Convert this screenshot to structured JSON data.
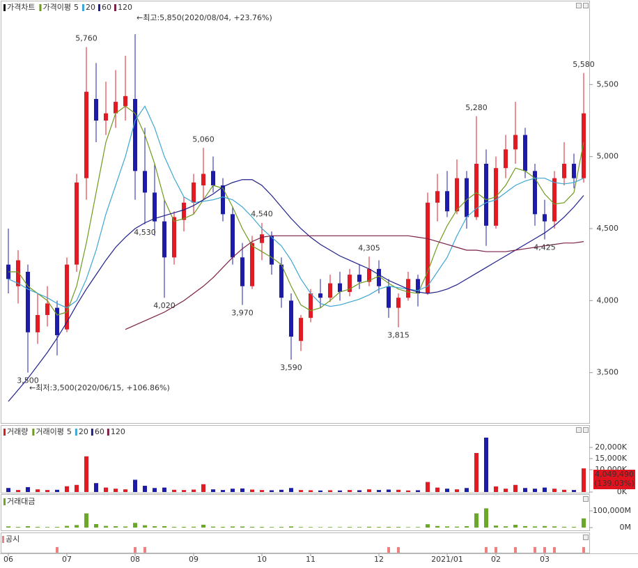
{
  "chart_data": [
    {
      "type": "candlestick",
      "title": "가격차트",
      "categories": [
        "06",
        null,
        null,
        null,
        null,
        null,
        "07",
        null,
        null,
        null,
        null,
        null,
        null,
        "08",
        null,
        null,
        null,
        null,
        null,
        "09",
        null,
        null,
        null,
        null,
        null,
        null,
        "10",
        null,
        null,
        null,
        null,
        "11",
        null,
        null,
        null,
        null,
        null,
        null,
        "12",
        null,
        null,
        null,
        null,
        null,
        null,
        "2021/01",
        null,
        null,
        null,
        null,
        "02",
        null,
        null,
        null,
        null,
        "03",
        null,
        null,
        null,
        null
      ],
      "open": [
        4250,
        4100,
        4200,
        3780,
        3900,
        3950,
        3800,
        4250,
        4850,
        5400,
        5250,
        5300,
        5350,
        5400,
        4900,
        4750,
        4550,
        4300,
        4560,
        4680,
        4800,
        4900,
        4800,
        4600,
        4300,
        4100,
        4400,
        4450,
        4250,
        4000,
        3720,
        3880,
        4050,
        4020,
        4120,
        4060,
        4180,
        4130,
        4220,
        4100,
        3950,
        4020,
        4150,
        4050,
        4680,
        4760,
        4620,
        4850,
        4580,
        4950,
        4520,
        4920,
        5050,
        5150,
        4900,
        4600,
        4550,
        4850,
        4950,
        4850
      ],
      "high": [
        4500,
        4350,
        4250,
        4050,
        4100,
        4000,
        4300,
        4880,
        5760,
        5650,
        5520,
        5600,
        5700,
        5850,
        5200,
        4950,
        4700,
        4620,
        4720,
        4880,
        5060,
        5000,
        4850,
        4650,
        4400,
        4450,
        4540,
        4480,
        4300,
        4050,
        3900,
        4080,
        4150,
        4180,
        4200,
        4220,
        4250,
        4305,
        4280,
        4150,
        4050,
        4200,
        4180,
        4750,
        4880,
        4900,
        4980,
        4900,
        5280,
        5050,
        5000,
        5150,
        5380,
        5200,
        4950,
        4700,
        4900,
        5100,
        5020,
        5580
      ],
      "low": [
        4050,
        3980,
        3500,
        3700,
        3820,
        3620,
        3780,
        4200,
        4700,
        5100,
        5150,
        5200,
        5250,
        4700,
        4530,
        4450,
        4020,
        4250,
        4480,
        4600,
        4700,
        4750,
        4550,
        4250,
        3970,
        4080,
        4280,
        4180,
        3950,
        3590,
        3650,
        3850,
        3950,
        3990,
        4000,
        4030,
        4080,
        4100,
        4050,
        3880,
        3815,
        4000,
        3960,
        4040,
        4550,
        4580,
        4600,
        4500,
        4560,
        4380,
        4500,
        4850,
        4950,
        4850,
        4520,
        4425,
        4500,
        4800,
        4780,
        4820
      ],
      "close": [
        4150,
        4280,
        3780,
        3900,
        3980,
        3760,
        4250,
        4820,
        5450,
        5250,
        5300,
        5380,
        5420,
        4900,
        4750,
        4550,
        4300,
        4580,
        4680,
        4820,
        4880,
        4800,
        4600,
        4300,
        4100,
        4400,
        4460,
        4250,
        4020,
        3750,
        3880,
        4050,
        4020,
        4120,
        4060,
        4180,
        4130,
        4220,
        4100,
        3950,
        4020,
        4150,
        4050,
        4680,
        4760,
        4620,
        4850,
        4580,
        4950,
        4520,
        4920,
        5050,
        5150,
        4900,
        4600,
        4550,
        4850,
        4950,
        4850,
        5300
      ],
      "up_color": "#e01b24",
      "down_color": "#1c1ca8",
      "ylim": [
        3150,
        6000
      ],
      "yticks": [
        {
          "value": 3500,
          "label": "3,500"
        },
        {
          "value": 4000,
          "label": "4,000"
        },
        {
          "value": 4500,
          "label": "4,500"
        },
        {
          "value": 5000,
          "label": "5,000"
        },
        {
          "value": 5500,
          "label": "5,500"
        }
      ],
      "ma_title": "가격이평",
      "series": [
        {
          "name": "5",
          "color": "#6e9a1e",
          "values": [
            4200,
            4200,
            4100,
            4050,
            4000,
            3900,
            3920,
            4100,
            4400,
            4750,
            5100,
            5300,
            5350,
            5300,
            5150,
            4950,
            4700,
            4550,
            4570,
            4600,
            4700,
            4800,
            4780,
            4650,
            4500,
            4380,
            4340,
            4300,
            4250,
            4100,
            3970,
            3930,
            3950,
            4000,
            4060,
            4080,
            4120,
            4140,
            4170,
            4120,
            4080,
            4060,
            4050,
            4200,
            4380,
            4520,
            4630,
            4700,
            4750,
            4700,
            4720,
            4800,
            4920,
            4900,
            4850,
            4740,
            4670,
            4680,
            4750,
            5100
          ]
        },
        {
          "name": "20",
          "color": "#3ea6d2",
          "values": [
            4150,
            4120,
            4080,
            4050,
            4020,
            3980,
            3950,
            4000,
            4150,
            4350,
            4600,
            4800,
            5000,
            5250,
            5350,
            5200,
            5000,
            4850,
            4720,
            4680,
            4690,
            4700,
            4720,
            4700,
            4650,
            4580,
            4500,
            4440,
            4380,
            4280,
            4150,
            4050,
            3980,
            3960,
            3970,
            3990,
            4010,
            4040,
            4080,
            4100,
            4090,
            4080,
            4070,
            4100,
            4200,
            4300,
            4450,
            4580,
            4640,
            4680,
            4700,
            4750,
            4800,
            4830,
            4850,
            4850,
            4820,
            4810,
            4820,
            4850
          ]
        },
        {
          "name": "60",
          "color": "#1e1e8c",
          "values": [
            3300,
            3380,
            3460,
            3550,
            3640,
            3740,
            3850,
            3970,
            4080,
            4180,
            4280,
            4370,
            4440,
            4500,
            4540,
            4570,
            4590,
            4610,
            4630,
            4660,
            4700,
            4740,
            4790,
            4820,
            4840,
            4840,
            4800,
            4730,
            4650,
            4570,
            4500,
            4440,
            4390,
            4350,
            4310,
            4280,
            4250,
            4220,
            4180,
            4140,
            4110,
            4080,
            4060,
            4050,
            4060,
            4080,
            4110,
            4150,
            4190,
            4230,
            4270,
            4310,
            4350,
            4390,
            4430,
            4470,
            4520,
            4580,
            4650,
            4730
          ]
        },
        {
          "name": "120",
          "color": "#7b1f46",
          "values": [
            null,
            null,
            null,
            null,
            null,
            null,
            null,
            null,
            null,
            null,
            null,
            null,
            3800,
            3830,
            3860,
            3890,
            3920,
            3960,
            4000,
            4050,
            4100,
            4160,
            4230,
            4300,
            4360,
            4410,
            4440,
            4450,
            4450,
            4450,
            4450,
            4450,
            4450,
            4450,
            4450,
            4450,
            4450,
            4450,
            4450,
            4450,
            4450,
            4450,
            4440,
            4430,
            4410,
            4390,
            4370,
            4350,
            4350,
            4340,
            4340,
            4340,
            4350,
            4360,
            4370,
            4380,
            4390,
            4400,
            4400,
            4410
          ]
        }
      ],
      "annotations": [
        {
          "value": 5760,
          "label": "5,760"
        },
        {
          "value": 5060,
          "label": "5,060"
        },
        {
          "value": 4540,
          "label": "4,540"
        },
        {
          "value": 4305,
          "label": "4,305"
        },
        {
          "value": 5280,
          "label": "5,280"
        },
        {
          "value": 5580,
          "label": "5,580"
        },
        {
          "value": 3500,
          "label": "3,500"
        },
        {
          "value": 4530,
          "label": "4,530"
        },
        {
          "value": 4020,
          "label": "4,020"
        },
        {
          "value": 3970,
          "label": "3,970"
        },
        {
          "value": 3590,
          "label": "3,590"
        },
        {
          "value": 3815,
          "label": "3,815"
        },
        {
          "value": 4425,
          "label": "4,425"
        }
      ],
      "max_note": "←최고:5,850(2020/08/04, +23.76%)",
      "min_note": "←최저:3,500(2020/06/15, +106.86%)"
    },
    {
      "type": "bar",
      "title": "거래량",
      "values": [
        1800,
        900,
        2200,
        1200,
        900,
        1000,
        2600,
        3200,
        16000,
        4000,
        2000,
        1500,
        1200,
        5500,
        2800,
        1800,
        2000,
        1000,
        900,
        1100,
        3500,
        1200,
        900,
        1500,
        1600,
        1100,
        900,
        800,
        1000,
        1800,
        900,
        800,
        700,
        800,
        700,
        900,
        800,
        1200,
        900,
        1100,
        1000,
        700,
        800,
        4500,
        2000,
        1500,
        1200,
        1800,
        17500,
        24400,
        2500,
        1500,
        3200,
        1800,
        1500,
        2000,
        1500,
        1000,
        900,
        10600
      ],
      "ylim": [
        0,
        29375
      ],
      "yticks": [
        {
          "value": 0,
          "label": "0K"
        },
        {
          "value": 10000,
          "label": "10,000K"
        },
        {
          "value": 15000,
          "label": "15,000K"
        },
        {
          "value": 20000,
          "label": "20,000K"
        }
      ],
      "ma_title": "거래이평",
      "legend": [
        {
          "name": "5",
          "color": "#6e9a1e"
        },
        {
          "name": "20",
          "color": "#3ea6d2"
        },
        {
          "name": "60",
          "color": "#1e1e8c"
        },
        {
          "name": "120",
          "color": "#7b1f46"
        }
      ],
      "last_labels": [
        "4,049,490",
        "(139.03%)"
      ]
    },
    {
      "type": "bar",
      "title": "거래대금",
      "color": "#6aa82a",
      "values": [
        7000,
        4000,
        8000,
        4500,
        3500,
        3800,
        10000,
        15000,
        85000,
        21000,
        10000,
        8000,
        6500,
        28000,
        14000,
        8000,
        8500,
        4500,
        4200,
        5200,
        17000,
        5800,
        4200,
        6500,
        6500,
        4700,
        4000,
        3400,
        4000,
        6800,
        3400,
        3200,
        2800,
        3300,
        2900,
        3700,
        3300,
        5000,
        3700,
        4400,
        4000,
        2900,
        3300,
        20000,
        9500,
        7000,
        5700,
        8400,
        85000,
        115000,
        12000,
        7500,
        16500,
        8800,
        7000,
        9200,
        7000,
        4800,
        4400,
        55000
      ],
      "ylim": [
        0,
        187500
      ],
      "yticks": [
        {
          "value": 0,
          "label": "0M"
        },
        {
          "value": 100000,
          "label": "100,000M"
        }
      ]
    },
    {
      "type": "event",
      "title": "공시",
      "color": "#f08080",
      "x": [
        5,
        13,
        14,
        39,
        40,
        49,
        50,
        52,
        54,
        55,
        56,
        59
      ]
    }
  ]
}
